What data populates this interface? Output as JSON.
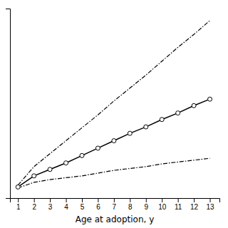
{
  "chart_data": {
    "type": "line",
    "xlabel": "Age at adoption, y",
    "x": [
      1,
      2,
      3,
      4,
      5,
      6,
      7,
      8,
      9,
      10,
      11,
      12,
      13
    ],
    "series": [
      {
        "color": "#000000",
        "line_style": "dashdot",
        "values": [
          0.04,
          0.24,
          0.38,
          0.52,
          0.66,
          0.8,
          0.95,
          1.09,
          1.23,
          1.38,
          1.53,
          1.67,
          1.82
        ]
      },
      {
        "color": "#000000",
        "line_style": "solid",
        "marker": "circle",
        "values": [
          0.02,
          0.14,
          0.21,
          0.28,
          0.36,
          0.44,
          0.52,
          0.6,
          0.67,
          0.75,
          0.82,
          0.9,
          0.97
        ]
      },
      {
        "color": "#000000",
        "line_style": "dashdot",
        "values": [
          0.01,
          0.07,
          0.1,
          0.12,
          0.14,
          0.17,
          0.2,
          0.22,
          0.24,
          0.27,
          0.29,
          0.31,
          0.33
        ]
      }
    ],
    "xlim": [
      0.5,
      13.6
    ],
    "ylim": [
      -0.1,
      1.95
    ],
    "xticks": [
      1,
      2,
      3,
      4,
      5,
      6,
      7,
      8,
      9,
      10,
      11,
      12,
      13
    ],
    "tick_labels": "x"
  }
}
